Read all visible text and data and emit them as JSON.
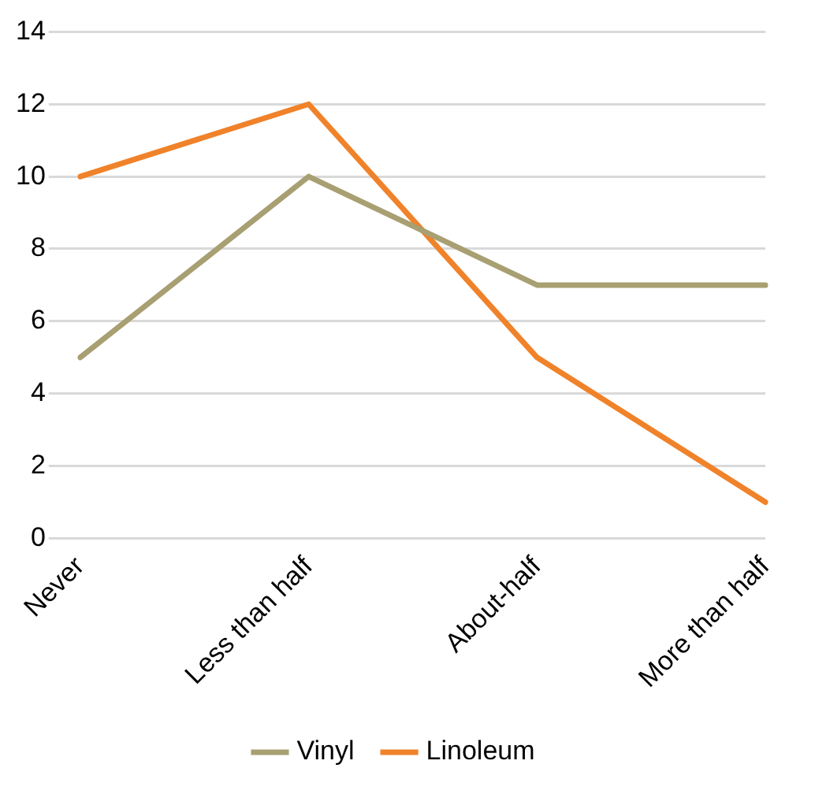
{
  "chart_data": {
    "type": "line",
    "categories": [
      "Never",
      "Less than half",
      "About-half",
      "More than half"
    ],
    "series": [
      {
        "name": "Vinyl",
        "color": "#a89f72",
        "values": [
          5,
          10,
          7,
          7
        ]
      },
      {
        "name": "Linoleum",
        "color": "#f0822a",
        "values": [
          10,
          12,
          5,
          1
        ]
      }
    ],
    "ylim": [
      0,
      14
    ],
    "yticks": [
      0,
      2,
      4,
      6,
      8,
      10,
      12,
      14
    ],
    "grid": "y",
    "legend": "bottom",
    "marker": "none",
    "line_style": "solid"
  }
}
